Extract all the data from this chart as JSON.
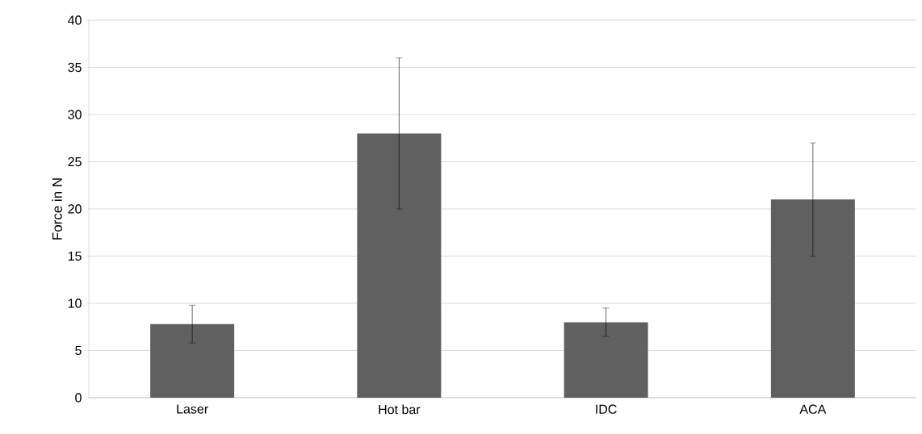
{
  "chart_data": {
    "type": "bar",
    "ylabel": "Force in N",
    "categories": [
      "Laser",
      "Hot bar",
      "IDC",
      "ACA"
    ],
    "values": [
      7.8,
      28,
      8,
      21
    ],
    "errors": [
      2,
      8,
      1.5,
      6
    ],
    "color": "#606060",
    "ylim": [
      0,
      40
    ],
    "yticks": [
      0,
      5,
      10,
      15,
      20,
      25,
      30,
      35,
      40
    ],
    "grid": "y"
  }
}
